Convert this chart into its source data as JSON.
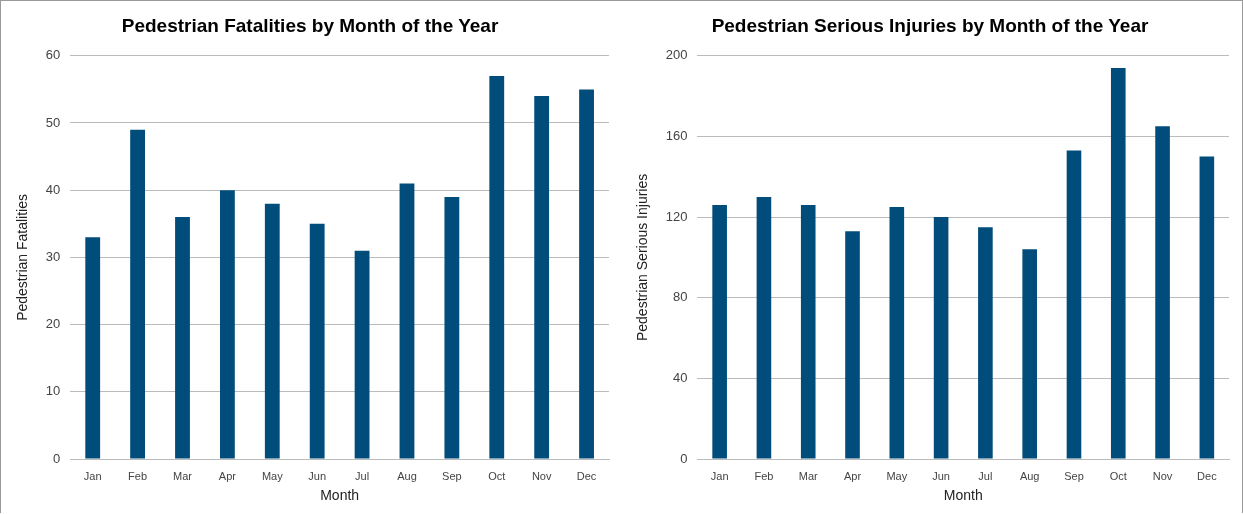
{
  "chart_data": [
    {
      "type": "bar",
      "title": "Pedestrian Fatalities by Month of the Year",
      "xlabel": "Month",
      "ylabel": "Pedestrian Fatalities",
      "categories": [
        "Jan",
        "Feb",
        "Mar",
        "Apr",
        "May",
        "Jun",
        "Jul",
        "Aug",
        "Sep",
        "Oct",
        "Nov",
        "Dec"
      ],
      "values": [
        33,
        49,
        36,
        40,
        38,
        35,
        31,
        41,
        39,
        57,
        54,
        55
      ],
      "color": "#004c7a",
      "ylim": [
        0,
        60
      ],
      "yticks": [
        0,
        10,
        20,
        30,
        40,
        50,
        60
      ],
      "grid": "y"
    },
    {
      "type": "bar",
      "title": "Pedestrian Serious Injuries by Month of the Year",
      "xlabel": "Month",
      "ylabel": "Pedestrian Serious Injuries",
      "categories": [
        "Jan",
        "Feb",
        "Mar",
        "Apr",
        "May",
        "Jun",
        "Jul",
        "Aug",
        "Sep",
        "Oct",
        "Nov",
        "Dec"
      ],
      "values": [
        126,
        130,
        126,
        113,
        125,
        120,
        115,
        104,
        153,
        194,
        165,
        150
      ],
      "color": "#004c7a",
      "ylim": [
        0,
        200
      ],
      "yticks": [
        0,
        40,
        80,
        120,
        160,
        200
      ],
      "grid": "y"
    }
  ]
}
